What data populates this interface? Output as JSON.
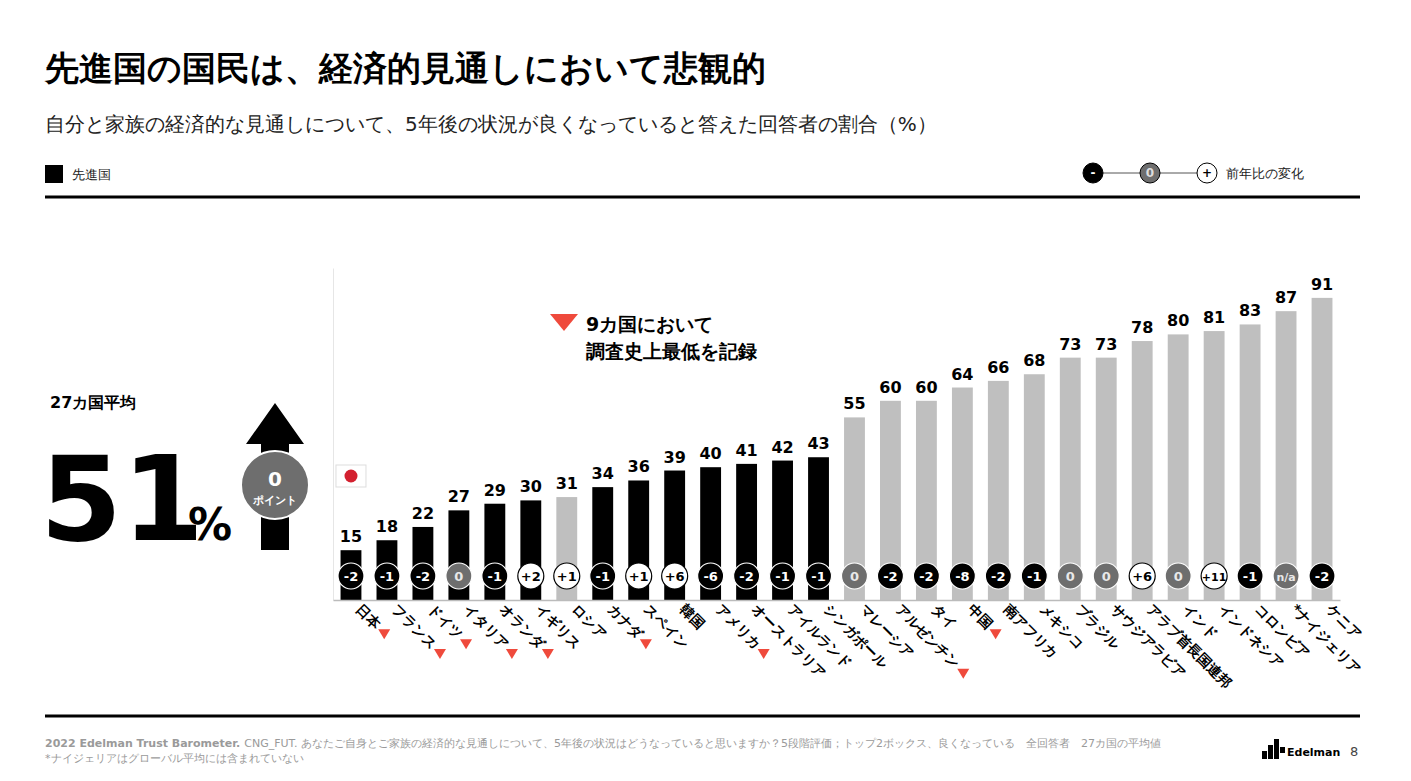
{
  "chart_data": {
    "type": "bar",
    "title": "先進国の国民は、経済的見通しにおいて悲観的",
    "subtitle": "自分と家族の経済的な見通しについて、5年後の状況が良くなっていると答えた回答者の割合（%）",
    "categories": [
      "日本",
      "フランス",
      "ドイツ",
      "イタリア",
      "オランダ",
      "イギリス",
      "ロシア",
      "カナダ",
      "スペイン",
      "韓国",
      "アメリカ",
      "オーストラリア",
      "アイルランド",
      "シンガポール",
      "マレーシア",
      "アルゼンチン",
      "タイ",
      "中国",
      "南アフリカ",
      "メキシコ",
      "ブラジル",
      "サウジアラビア",
      "アラブ首長国連邦",
      "インド",
      "インドネシア",
      "コロンビア",
      "*ナイジェリア",
      "ケニア"
    ],
    "values": [
      15,
      18,
      22,
      27,
      29,
      30,
      31,
      34,
      36,
      39,
      40,
      41,
      42,
      43,
      55,
      60,
      60,
      64,
      66,
      68,
      73,
      73,
      78,
      80,
      81,
      83,
      87,
      91
    ],
    "colors": [
      "#000000",
      "#000000",
      "#000000",
      "#000000",
      "#000000",
      "#000000",
      "#bfbfbf",
      "#000000",
      "#000000",
      "#000000",
      "#000000",
      "#000000",
      "#000000",
      "#000000",
      "#bfbfbf",
      "#bfbfbf",
      "#bfbfbf",
      "#bfbfbf",
      "#bfbfbf",
      "#bfbfbf",
      "#bfbfbf",
      "#bfbfbf",
      "#bfbfbf",
      "#bfbfbf",
      "#bfbfbf",
      "#bfbfbf",
      "#bfbfbf",
      "#bfbfbf"
    ],
    "ylim": [
      0,
      100
    ],
    "data_labels": true,
    "tick_labels": "x",
    "legend": "top-left",
    "legend_entries": [
      {
        "name": "先進国",
        "color": "#000000"
      }
    ],
    "changes": {
      "values": [
        -2,
        -1,
        -2,
        0,
        -1,
        2,
        1,
        -1,
        1,
        6,
        -6,
        -2,
        -1,
        -1,
        0,
        -2,
        -2,
        -8,
        -2,
        -1,
        0,
        0,
        6,
        0,
        11,
        -1,
        null,
        -2
      ],
      "value_labels": [
        "-2",
        "-1",
        "-2",
        "0",
        "-1",
        "+2",
        "+1",
        "-1",
        "+1",
        "+6",
        "-6",
        "-2",
        "-1",
        "-1",
        "0",
        "-2",
        "-2",
        "-8",
        "-2",
        "-1",
        "0",
        "0",
        "+6",
        "0",
        "+11",
        "-1",
        "n/a",
        "-2"
      ]
    },
    "change_legend": {
      "labels": [
        "-",
        "0",
        "+"
      ],
      "title": "前年比の変化"
    },
    "record_low": [
      true,
      true,
      true,
      true,
      true,
      false,
      false,
      true,
      false,
      false,
      true,
      false,
      false,
      false,
      false,
      true,
      false,
      true,
      false,
      false,
      false,
      false,
      false,
      false,
      false,
      false,
      false,
      false
    ],
    "annotation": {
      "lines": [
        "9カ国において",
        "調査史上最低を記録"
      ]
    },
    "average": {
      "label": "27カ国平均",
      "value": 51,
      "unit": "%",
      "change": 0,
      "change_unit": "ポイント"
    },
    "source": "2022 Edelman Trust Barometer.",
    "note": "CNG_FUT. あなたご自身とご家族の経済的な見通しについて、5年後の状況はどうなっていると思いますか？5段階評価；トップ2ボックス、良くなっている　全回答者　27カ国の平均値",
    "footnote": "*ナイジェリアはグローバル平均には含まれていない",
    "brand": "Edelman",
    "page": 8
  }
}
